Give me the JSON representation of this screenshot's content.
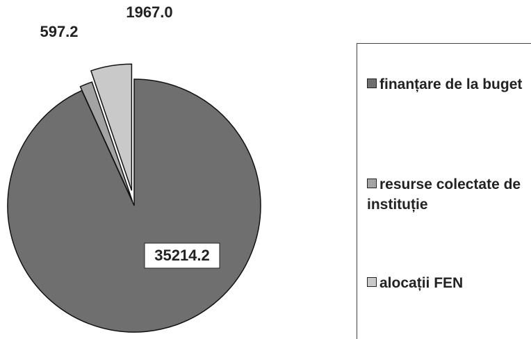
{
  "chart_data": {
    "type": "pie",
    "categories": [
      "finanțare de la buget",
      "resurse colectate de instituție",
      "alocații FEN"
    ],
    "values": [
      35214.2,
      597.2,
      1967.0
    ],
    "value_labels": [
      "35214.2",
      "597.2",
      "1967.0"
    ],
    "colors": [
      "#6f6f6f",
      "#a3a3a3",
      "#c9c9c9"
    ],
    "legend": "right"
  }
}
